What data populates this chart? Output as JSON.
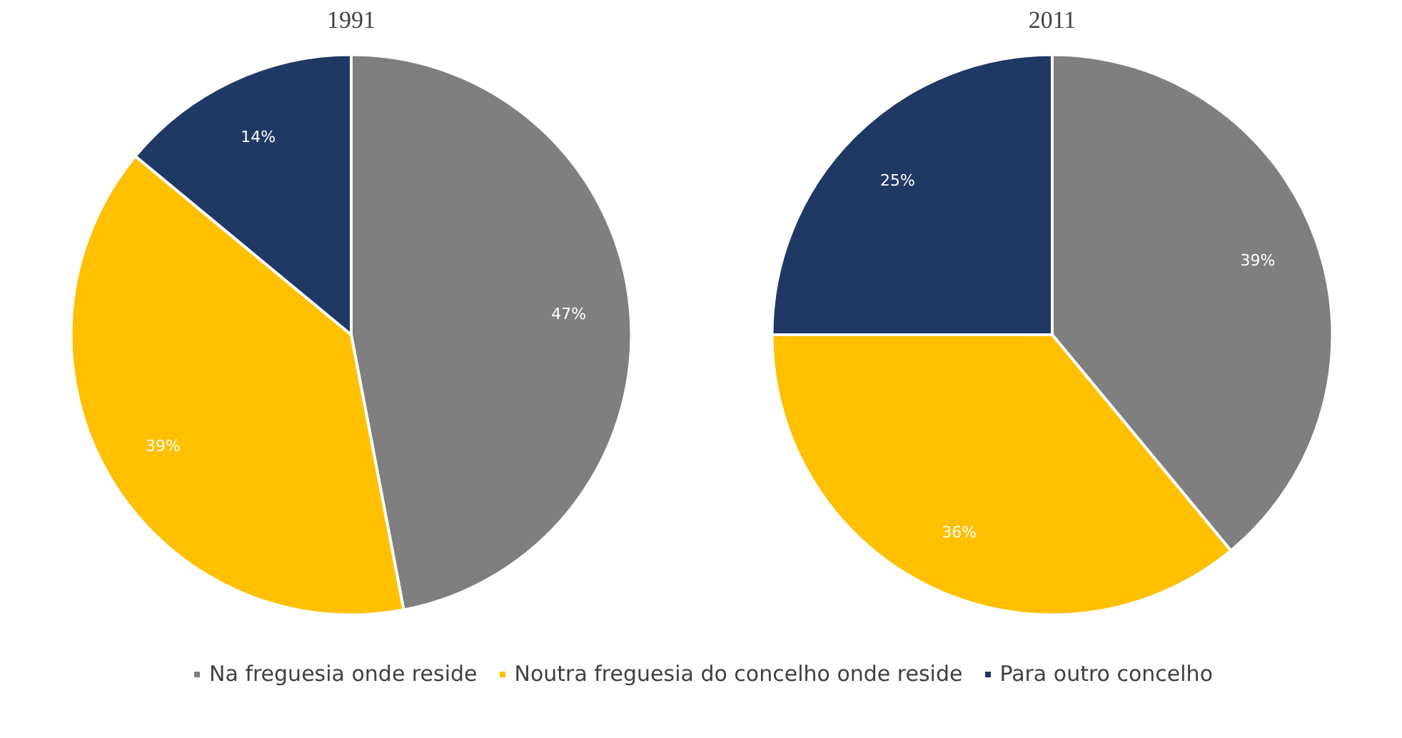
{
  "chart_data": {
    "type": "pie",
    "categories": [
      "Na freguesia onde reside",
      "Noutra freguesia do concelho onde reside",
      "Para outro concelho"
    ],
    "colors": [
      "#7f7f7f",
      "#ffc000",
      "#203864"
    ],
    "legend": "bottom",
    "series": [
      {
        "name": "1991",
        "values": [
          47,
          39,
          14
        ],
        "value_labels": [
          "47%",
          "39%",
          "14%"
        ]
      },
      {
        "name": "2011",
        "values": [
          39,
          36,
          25
        ],
        "value_labels": [
          "39%",
          "36%",
          "25%"
        ]
      }
    ]
  }
}
